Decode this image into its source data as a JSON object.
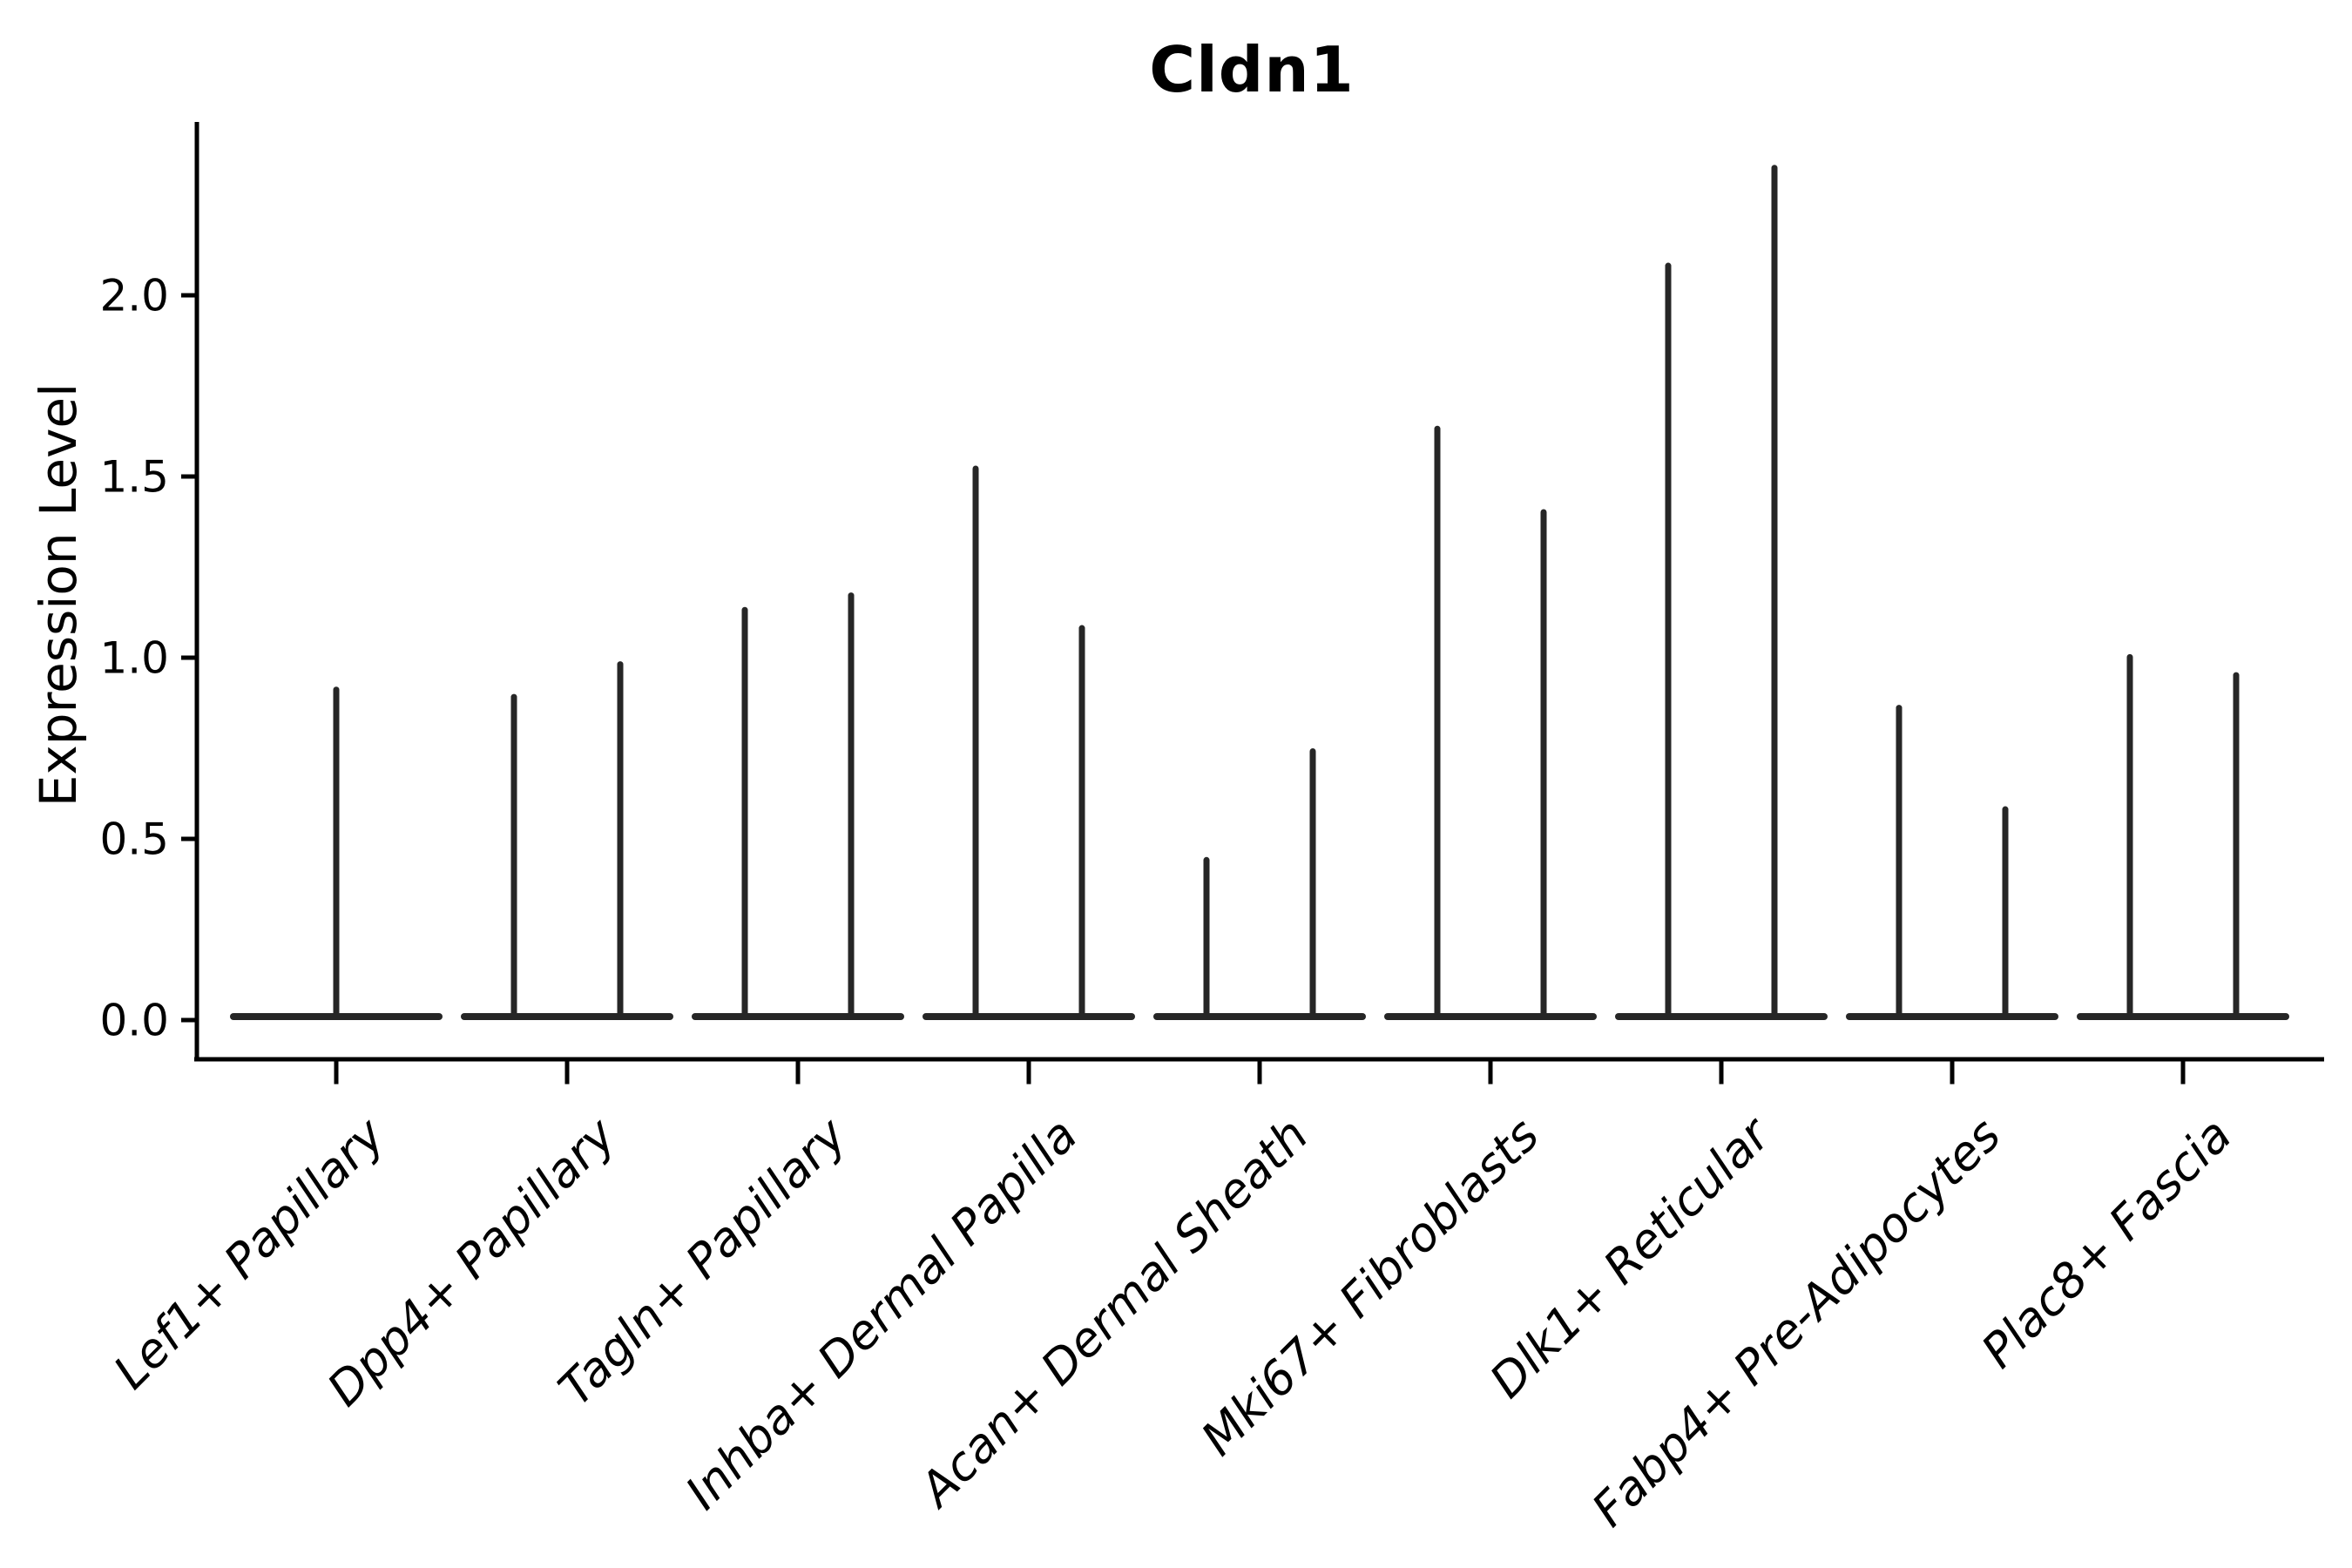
{
  "figure": {
    "title": "Cldn1",
    "ylabel": "Expression Level"
  },
  "colors": {
    "background": "#ffffff",
    "axis": "#000000",
    "text": "#000000",
    "violin": "#262626"
  },
  "chart_data": {
    "type": "violin",
    "title": "Cldn1",
    "xlabel": "",
    "ylabel": "Expression Level",
    "ylim": [
      0,
      2.48
    ],
    "yticks": [
      0.0,
      0.5,
      1.0,
      1.5,
      2.0
    ],
    "ytick_labels": [
      "0.0",
      "0.5",
      "1.0",
      "1.5",
      "2.0"
    ],
    "grid": false,
    "legend": "none",
    "categories": [
      "Lef1+ Papillary",
      "Dpp4+ Papillary",
      "Tagln+ Papillary",
      "Inhba+ Dermal Papilla",
      "Acan+ Dermal Sheath",
      "Mki67+ Fibroblasts",
      "Dlk1+ Reticular",
      "Fabp4+ Pre-Adipocytes",
      "Plac8+ Fascia"
    ],
    "violins": [
      {
        "category": "Lef1+ Papillary",
        "maxima": [
          0.92
        ],
        "baseline_value": 0
      },
      {
        "category": "Dpp4+ Papillary",
        "maxima": [
          0.9,
          0.99
        ],
        "baseline_value": 0
      },
      {
        "category": "Tagln+ Papillary",
        "maxima": [
          1.14,
          1.18
        ],
        "baseline_value": 0
      },
      {
        "category": "Inhba+ Dermal Papilla",
        "maxima": [
          1.53,
          1.09
        ],
        "baseline_value": 0
      },
      {
        "category": "Acan+ Dermal Sheath",
        "maxima": [
          0.45,
          0.75
        ],
        "baseline_value": 0
      },
      {
        "category": "Mki67+ Fibroblasts",
        "maxima": [
          1.64,
          1.41
        ],
        "baseline_value": 0
      },
      {
        "category": "Dlk1+ Reticular",
        "maxima": [
          2.09,
          2.36
        ],
        "baseline_value": 0
      },
      {
        "category": "Fabp4+ Pre-Adipocytes",
        "maxima": [
          0.87,
          0.59
        ],
        "baseline_value": 0
      },
      {
        "category": "Plac8+ Fascia",
        "maxima": [
          1.01,
          0.96
        ],
        "baseline_value": 0
      }
    ],
    "description": "Violin plot of Cldn1 expression per fibroblast subtype; density is concentrated at 0 (wide flat base) with a thin spike up to each violin's maximum expression."
  }
}
